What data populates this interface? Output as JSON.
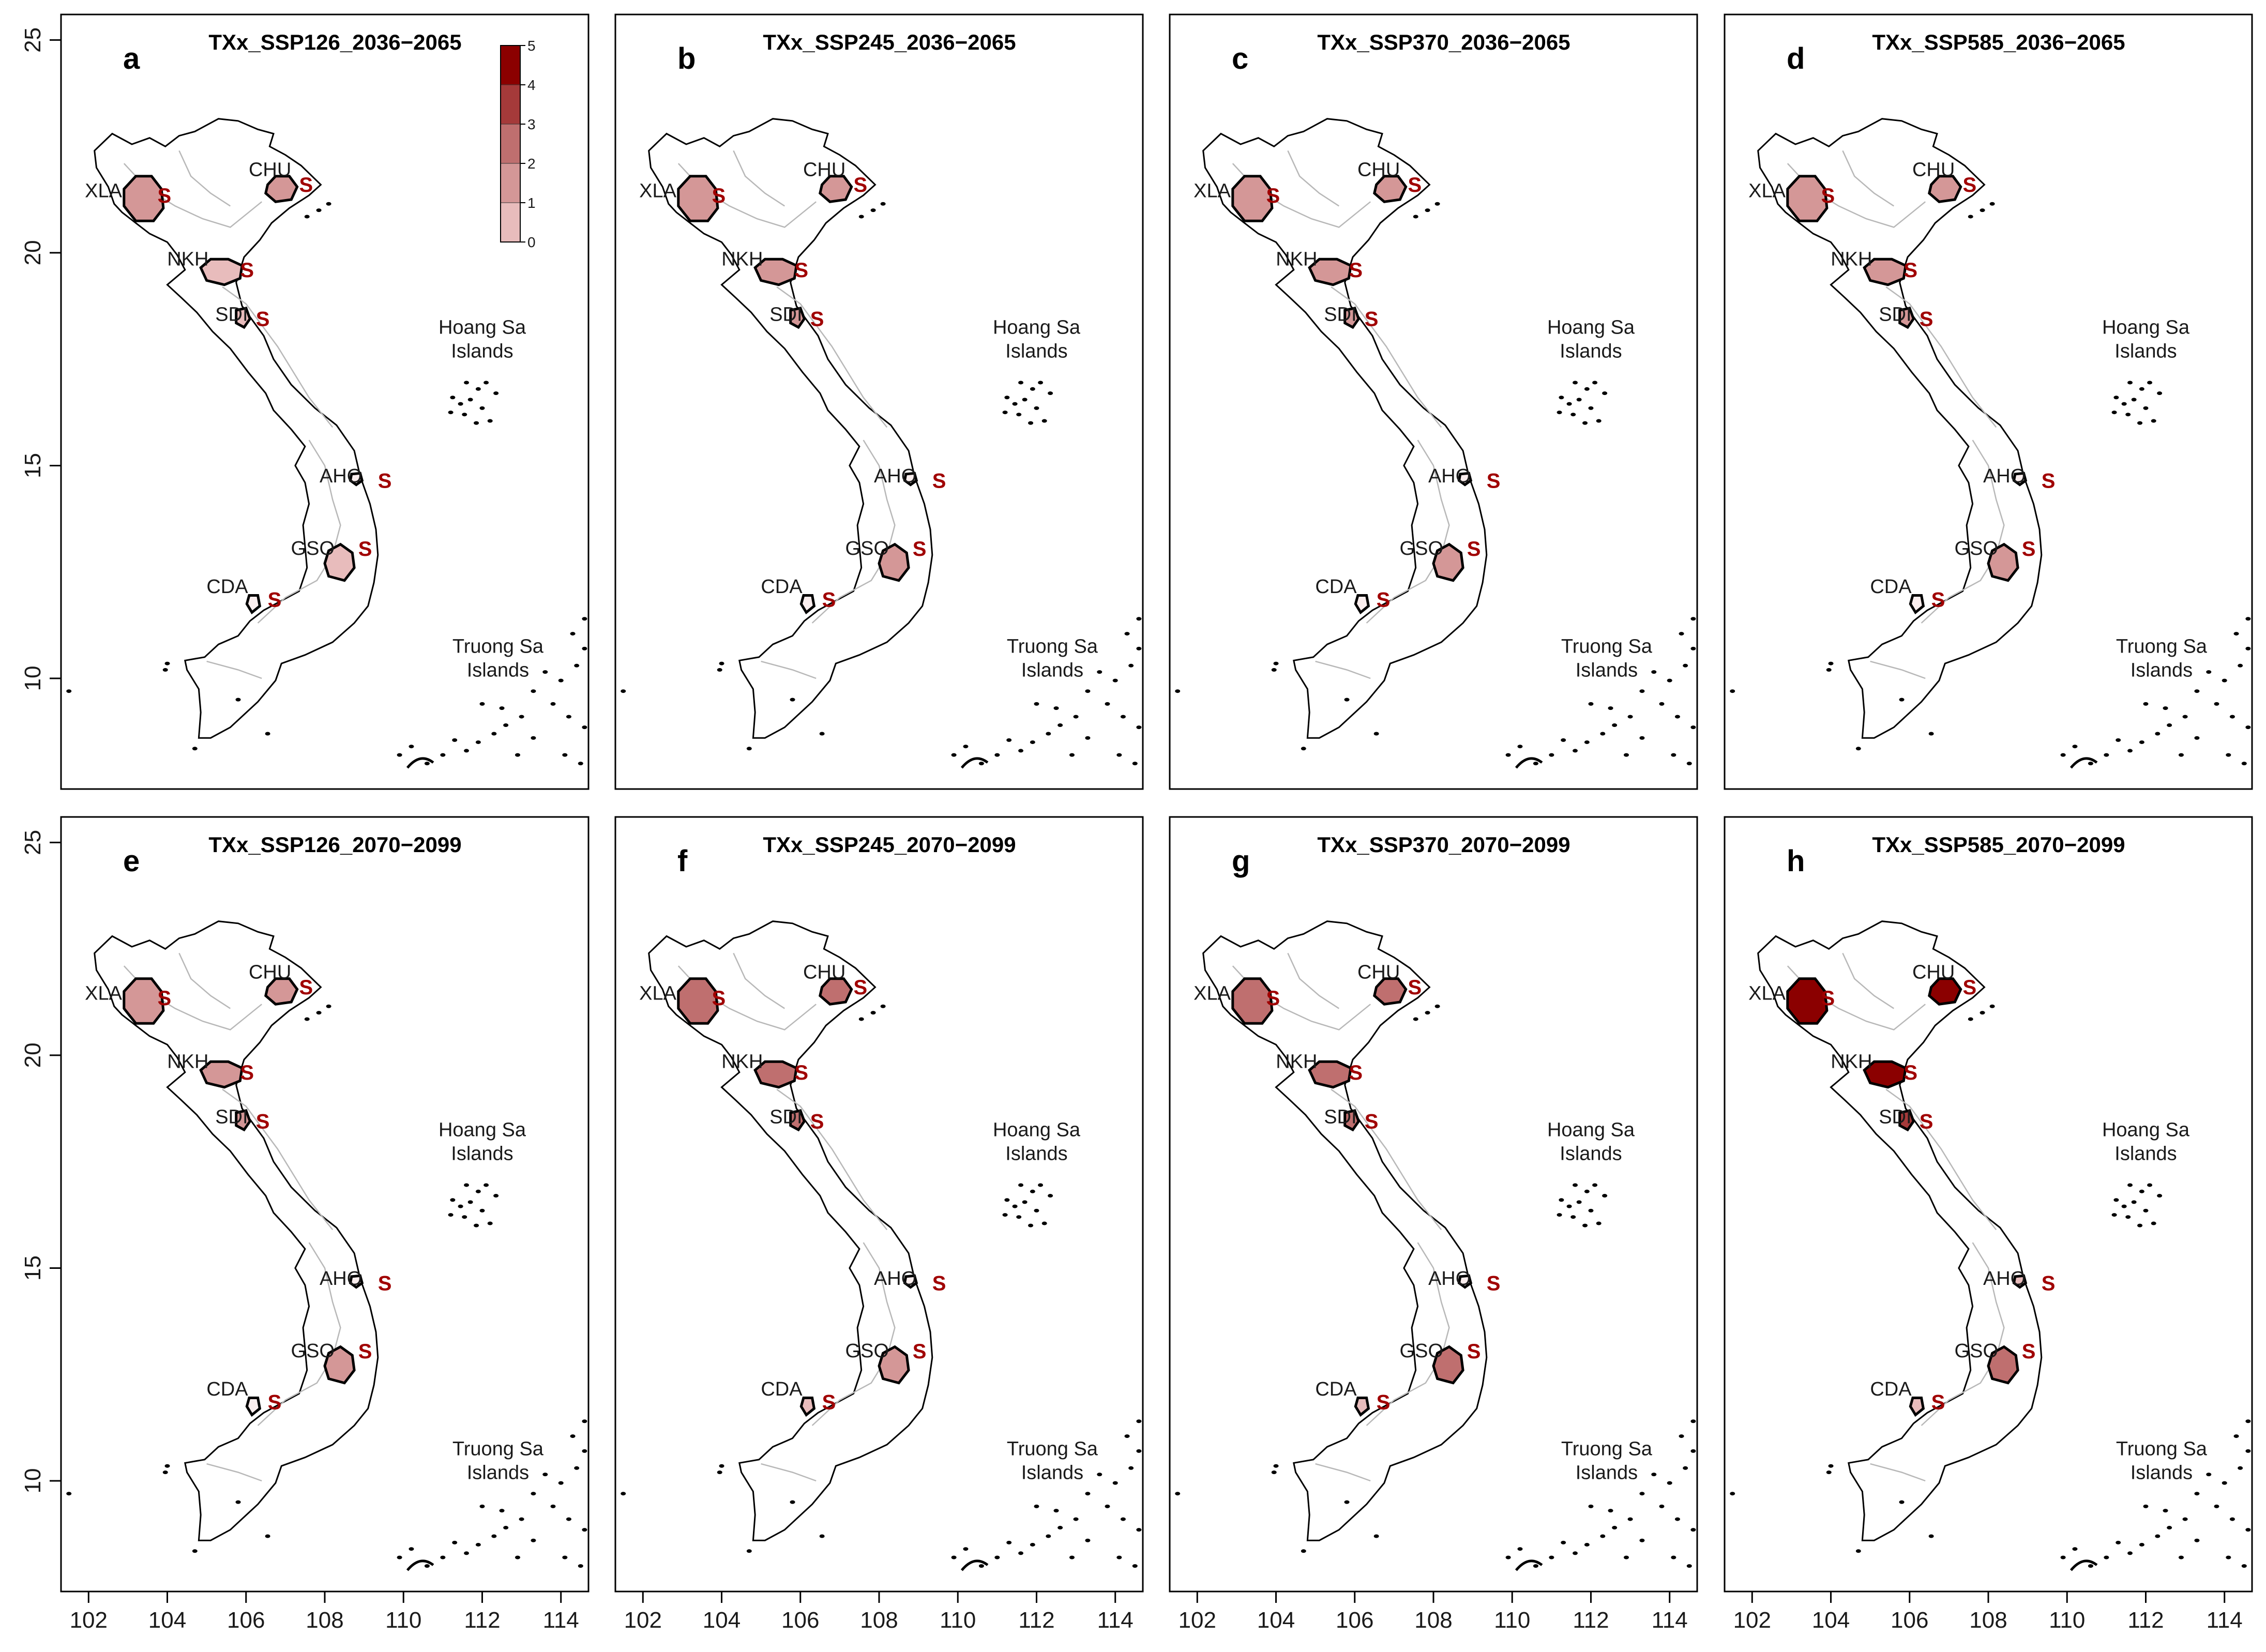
{
  "figure": {
    "x_ticks": [
      "102",
      "104",
      "106",
      "108",
      "110",
      "112",
      "114"
    ],
    "y_ticks": [
      "10",
      "15",
      "20",
      "25"
    ],
    "legend": {
      "values": [
        "0",
        "1",
        "2",
        "3",
        "4",
        "5"
      ],
      "colors": [
        "#fbeeee",
        "#e8bcbc",
        "#d49797",
        "#bf6f6f",
        "#a53a3a",
        "#8b0000"
      ]
    },
    "island_labels": {
      "hoang_sa": [
        "Hoang Sa",
        "Islands"
      ],
      "truong_sa": [
        "Truong Sa",
        "Islands"
      ]
    },
    "significance_marker": "S",
    "significance_color": "#a00000",
    "land_outline_color": "#000000",
    "river_color": "#b8b8b8"
  },
  "chart_data": {
    "type": "choropleth",
    "variable": "TXx",
    "x_range": [
      101.3,
      114.7
    ],
    "y_range": [
      7.4,
      25.6
    ],
    "color_scale": [
      0,
      5
    ],
    "stations": [
      {
        "code": "XLA",
        "lon": 103.4,
        "lat": 21.3
      },
      {
        "code": "CHU",
        "lon": 106.9,
        "lat": 21.5
      },
      {
        "code": "NKH",
        "lon": 105.4,
        "lat": 19.6
      },
      {
        "code": "SDI",
        "lon": 105.9,
        "lat": 18.5
      },
      {
        "code": "AHO",
        "lon": 108.8,
        "lat": 14.7
      },
      {
        "code": "GSO",
        "lon": 108.4,
        "lat": 12.7
      },
      {
        "code": "CDA",
        "lon": 106.2,
        "lat": 11.8
      }
    ],
    "panels": [
      {
        "letter": "a",
        "title": "TXx_SSP126_2036−2065",
        "values": {
          "XLA": 1.7,
          "CHU": 1.5,
          "NKH": 1.4,
          "SDI": 1.3,
          "AHO": 0.3,
          "GSO": 1.4,
          "CDA": 0.4
        }
      },
      {
        "letter": "b",
        "title": "TXx_SSP245_2036−2065",
        "values": {
          "XLA": 2.2,
          "CHU": 1.9,
          "NKH": 2.0,
          "SDI": 1.7,
          "AHO": 0.3,
          "GSO": 1.6,
          "CDA": 0.4
        }
      },
      {
        "letter": "c",
        "title": "TXx_SSP370_2036−2065",
        "values": {
          "XLA": 2.0,
          "CHU": 1.6,
          "NKH": 1.6,
          "SDI": 1.5,
          "AHO": 0.3,
          "GSO": 1.6,
          "CDA": 0.4
        }
      },
      {
        "letter": "d",
        "title": "TXx_SSP585_2036−2065",
        "values": {
          "XLA": 2.3,
          "CHU": 2.0,
          "NKH": 2.2,
          "SDI": 1.9,
          "AHO": 0.3,
          "GSO": 1.8,
          "CDA": 0.4
        }
      },
      {
        "letter": "e",
        "title": "TXx_SSP126_2070−2099",
        "values": {
          "XLA": 2.0,
          "CHU": 1.7,
          "NKH": 1.8,
          "SDI": 1.5,
          "AHO": 0.3,
          "GSO": 1.6,
          "CDA": 0.4
        }
      },
      {
        "letter": "f",
        "title": "TXx_SSP245_2070−2099",
        "values": {
          "XLA": 3.0,
          "CHU": 2.6,
          "NKH": 3.0,
          "SDI": 2.5,
          "AHO": 0.4,
          "GSO": 2.3,
          "CDA": 0.5
        }
      },
      {
        "letter": "g",
        "title": "TXx_SSP370_2070−2099",
        "values": {
          "XLA": 3.2,
          "CHU": 2.9,
          "NKH": 3.0,
          "SDI": 2.7,
          "AHO": 0.4,
          "GSO": 2.5,
          "CDA": 0.5
        }
      },
      {
        "letter": "h",
        "title": "TXx_SSP585_2070−2099",
        "values": {
          "XLA": 4.8,
          "CHU": 4.5,
          "NKH": 4.6,
          "SDI": 4.2,
          "AHO": 0.5,
          "GSO": 3.4,
          "CDA": 0.6
        }
      }
    ]
  }
}
